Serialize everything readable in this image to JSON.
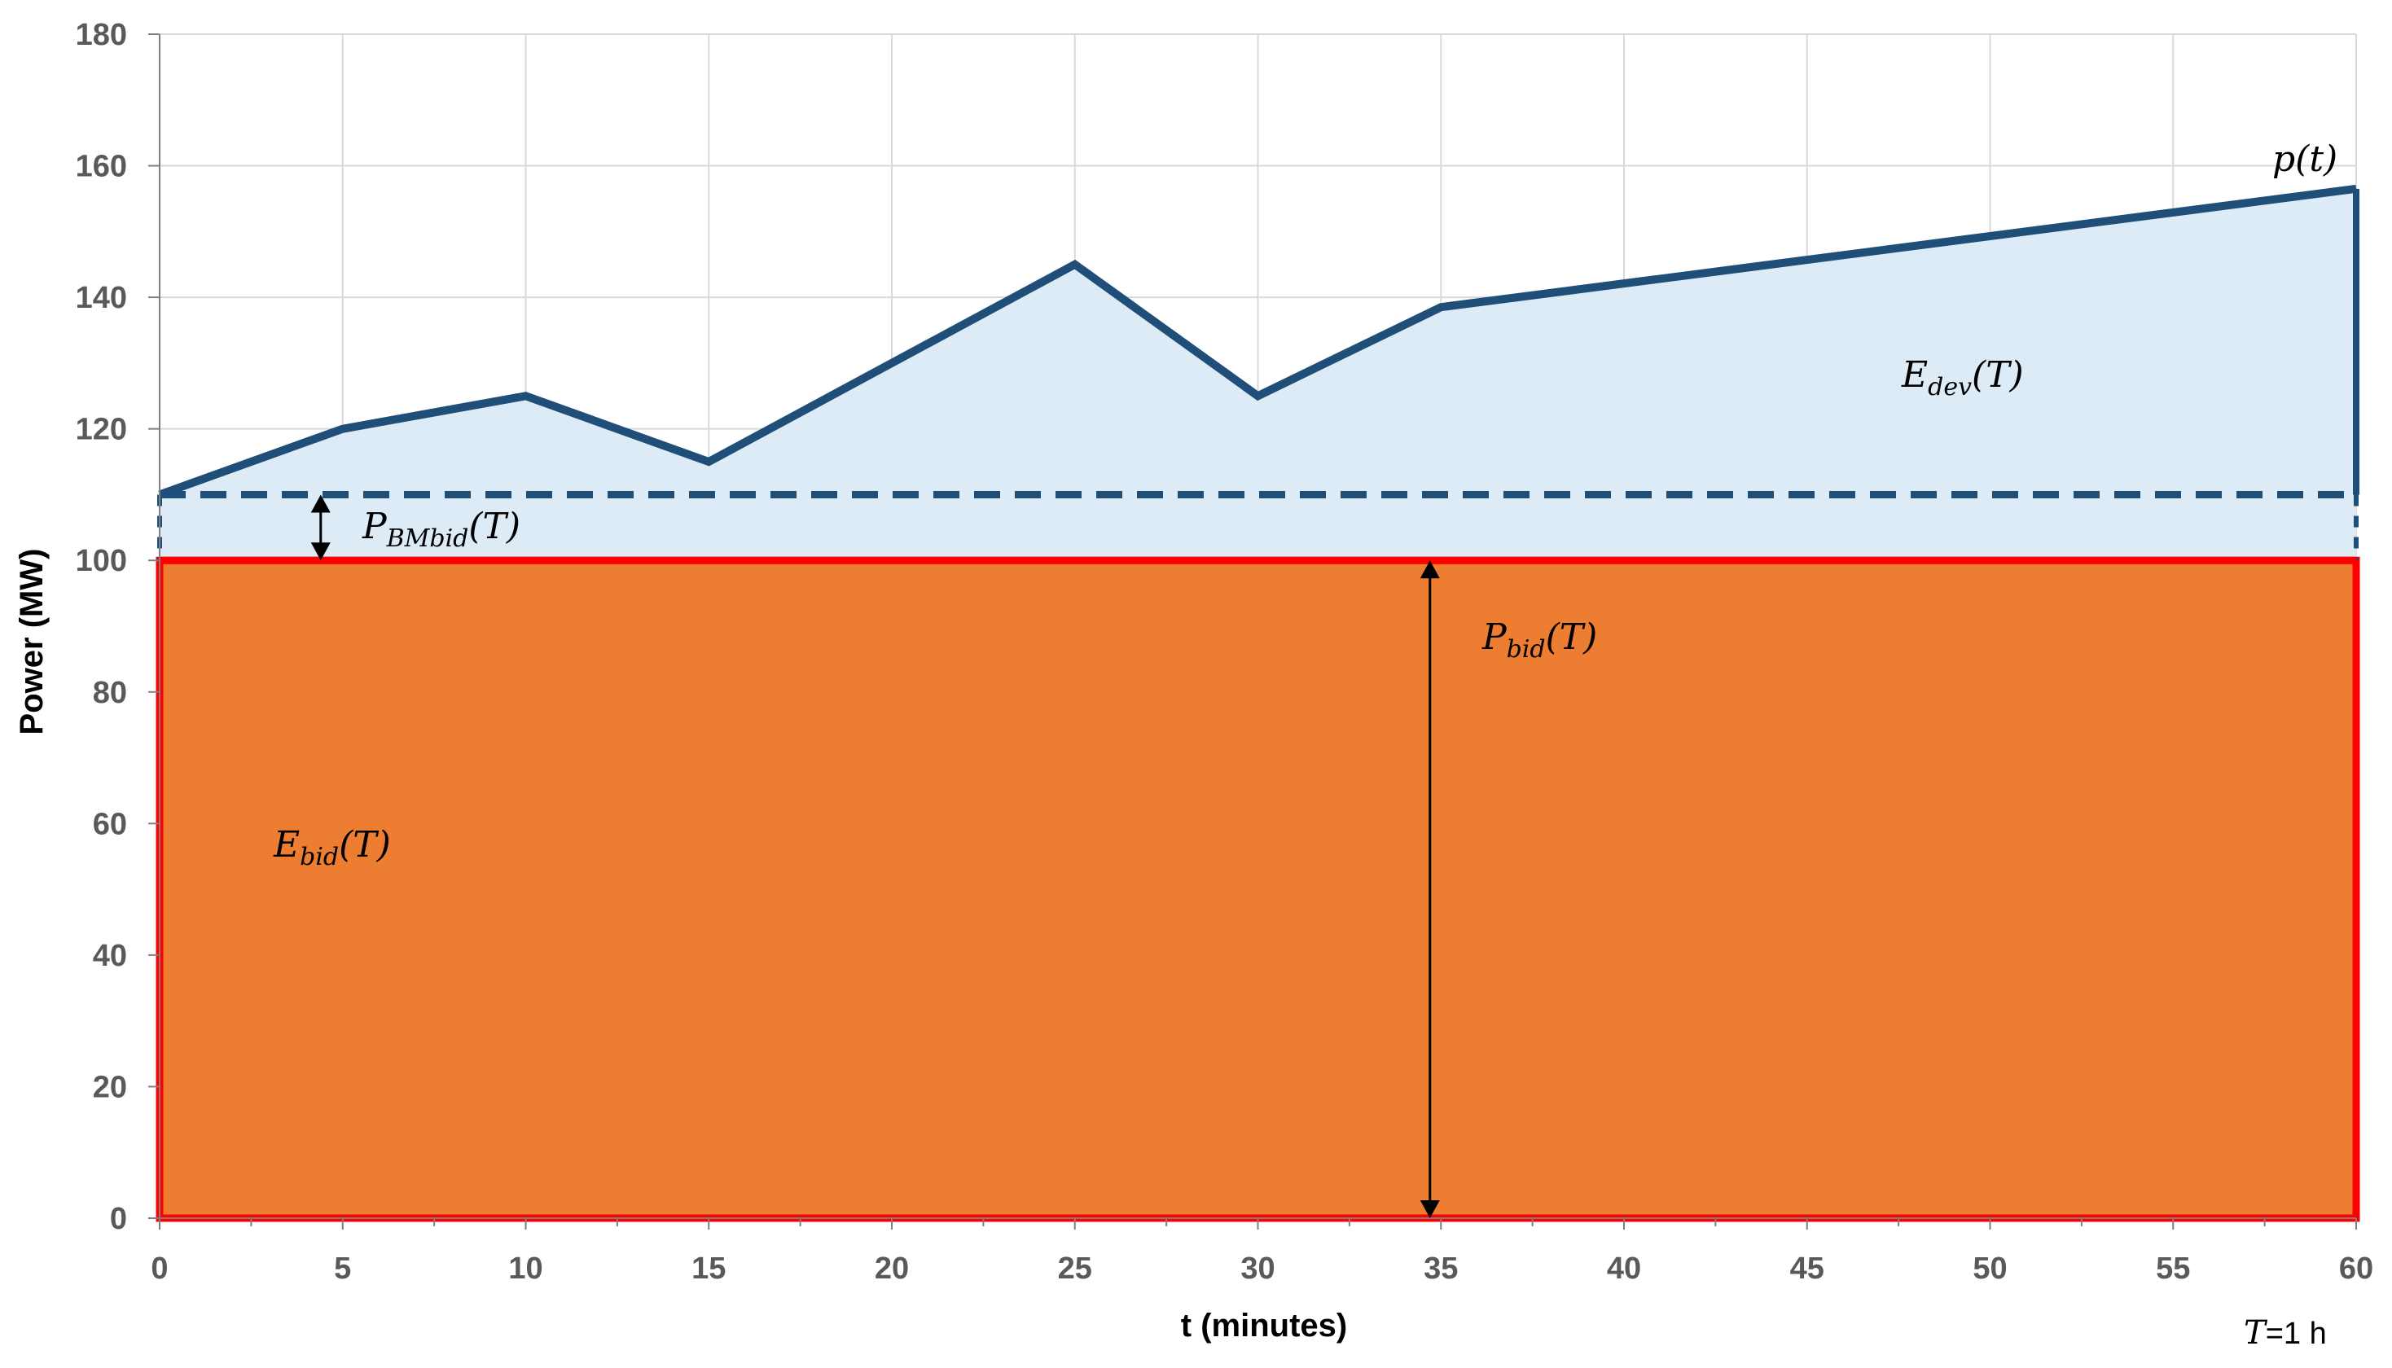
{
  "chart_data": {
    "type": "area",
    "xlabel": "t (minutes)",
    "ylabel": "Power (MW)",
    "xlim": [
      0,
      60
    ],
    "ylim": [
      0,
      180
    ],
    "xticks": [
      0,
      5,
      10,
      15,
      20,
      25,
      30,
      35,
      40,
      45,
      50,
      55,
      60
    ],
    "yticks": [
      0,
      20,
      40,
      60,
      80,
      100,
      120,
      140,
      160,
      180
    ],
    "grid": true,
    "series": [
      {
        "name": "p(t)",
        "style": "solid",
        "color": "#1F4E79",
        "x": [
          0,
          5,
          10,
          15,
          25,
          30,
          35,
          60
        ],
        "y": [
          110,
          120,
          125,
          115,
          145,
          125,
          138.5,
          156.5
        ]
      },
      {
        "name": "BM bid level",
        "style": "dashed",
        "color": "#1F4E79",
        "x": [
          0,
          60
        ],
        "y": [
          110,
          110
        ]
      },
      {
        "name": "Bid level",
        "style": "solid",
        "color": "#FF0000",
        "x": [
          0,
          60
        ],
        "y": [
          100,
          100
        ]
      }
    ],
    "regions": [
      {
        "name": "E_dev(T)",
        "color": "#DDEBF7",
        "from": "bid-level",
        "to": "p(t)"
      },
      {
        "name": "E_bid(T)",
        "color": "#ED7D31",
        "from": 0,
        "to": 100
      }
    ],
    "annotations": {
      "p_t": {
        "main": "p",
        "tail": "(t)"
      },
      "e_dev": {
        "main": "E",
        "sub": "dev",
        "tail": "(T)"
      },
      "p_bmbid": {
        "main": "P",
        "sub": "BMbid",
        "tail": "(T)"
      },
      "p_bid": {
        "main": "P",
        "sub": "bid",
        "tail": "(T)"
      },
      "e_bid": {
        "main": "E",
        "sub": "bid",
        "tail": "(T)"
      },
      "period": {
        "main": "T",
        "tail": "=1 h"
      }
    },
    "arrows": [
      {
        "name": "P_BMbid arrow",
        "x": 4.4,
        "y_from": 100,
        "y_to": 110
      },
      {
        "name": "P_bid arrow",
        "x": 34.7,
        "y_from": 0,
        "y_to": 100
      }
    ]
  },
  "colors": {
    "pt_line": "#1F4E79",
    "dev_fill": "#DDEBF7",
    "bid_fill": "#ED7D31",
    "bid_line": "#FF0000",
    "grid": "#D9D9D9",
    "axis": "#7F7F7F"
  }
}
